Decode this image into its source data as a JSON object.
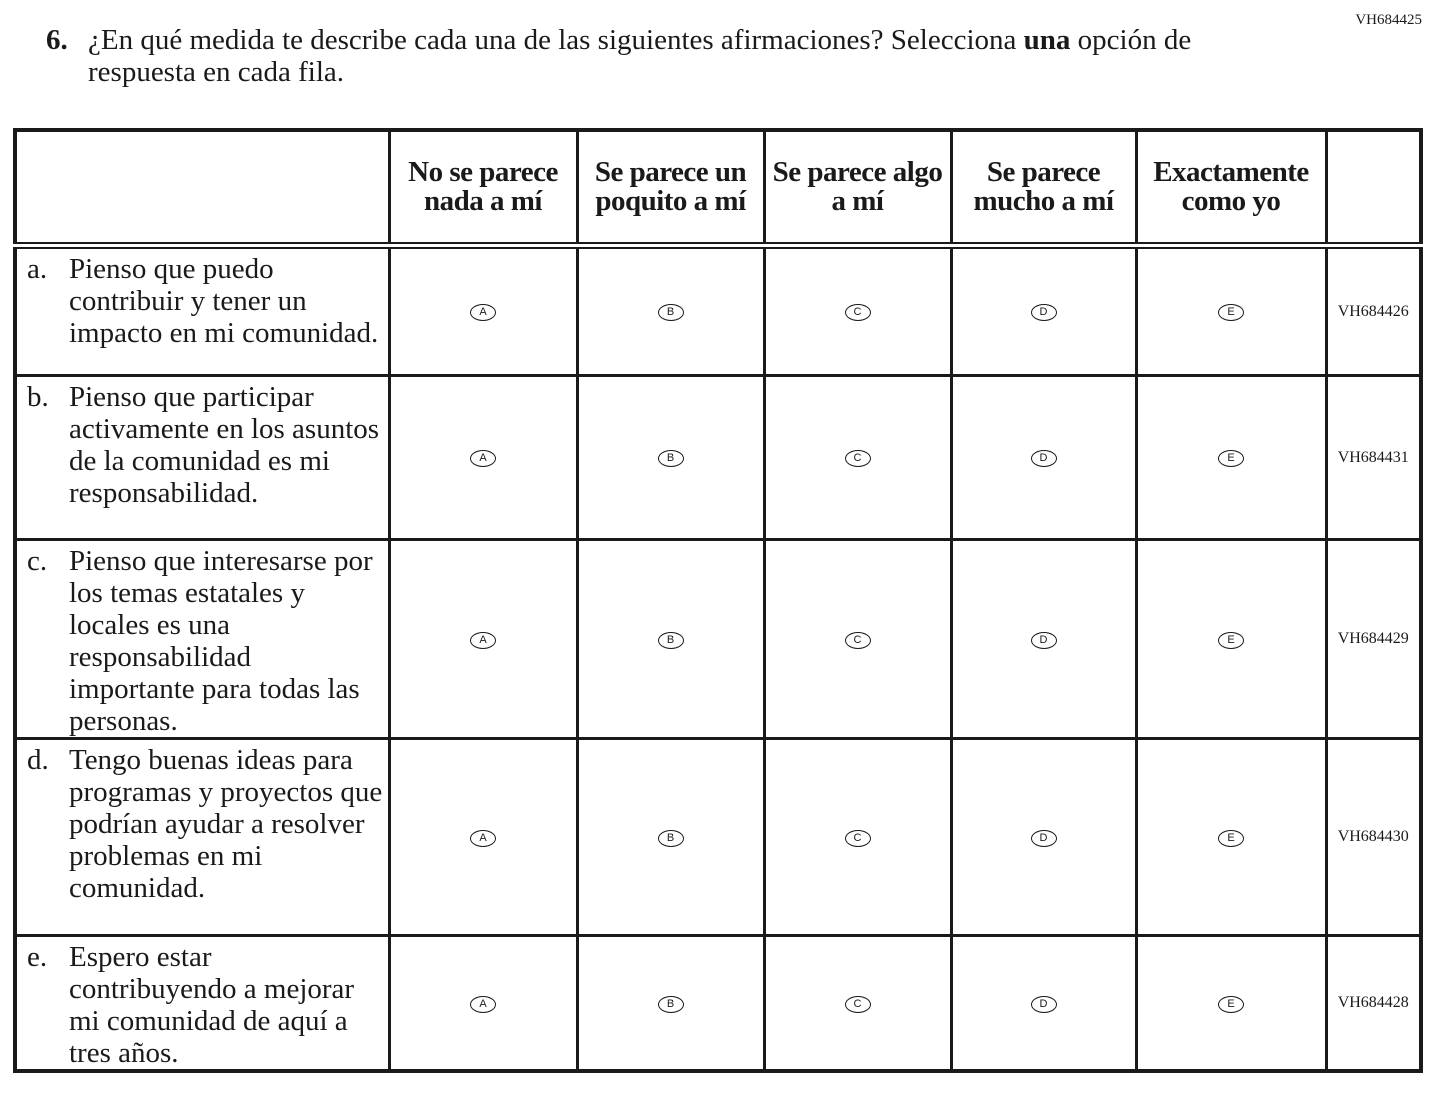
{
  "question": {
    "id": "VH684425",
    "number": "6.",
    "text_before": "¿En qué medida te describe cada una de las siguientes afirmaciones? Selecciona ",
    "text_bold": "una",
    "text_after": " opción de respuesta en cada fila."
  },
  "columns": [
    "No se parece nada a mí",
    "Se parece un poquito a mí",
    "Se parece algo a mí",
    "Se parece mucho a mí",
    "Exactamente como yo"
  ],
  "options": [
    "A",
    "B",
    "C",
    "D",
    "E"
  ],
  "rows": [
    {
      "label": "a.",
      "text": "Pienso que puedo contribuir y tener un impacto en mi comunidad.",
      "code": "VH684426"
    },
    {
      "label": "b.",
      "text": "Pienso que participar activamente en los asuntos de la comunidad es mi responsabilidad.",
      "code": "VH684431"
    },
    {
      "label": "c.",
      "text": "Pienso que interesarse por los temas estatales y locales es una responsabilidad importante para todas las personas.",
      "code": "VH684429"
    },
    {
      "label": "d.",
      "text": "Tengo buenas ideas para programas y proyectos que podrían ayudar a resolver problemas en mi comunidad.",
      "code": "VH684430"
    },
    {
      "label": "e.",
      "text": "Espero estar contribuyendo a mejorar mi comunidad de aquí a tres años.",
      "code": "VH684428"
    }
  ]
}
